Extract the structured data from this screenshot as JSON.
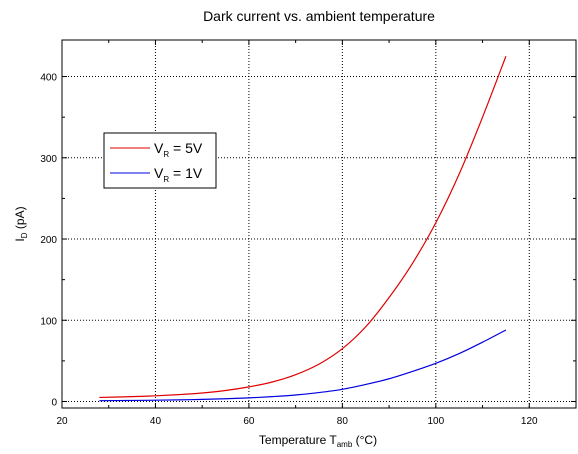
{
  "chart_data": {
    "type": "line",
    "title": "Dark current vs. ambient temperature",
    "xlabel": {
      "main": "Temperature T",
      "sub": "amb",
      "unit": " (°C)"
    },
    "ylabel": {
      "main": "I",
      "sub": "D",
      "unit": " (pA)"
    },
    "xlim": [
      20,
      130
    ],
    "ylim": [
      -8,
      445
    ],
    "xticks": [
      20,
      40,
      60,
      80,
      100,
      120
    ],
    "yticks": [
      0,
      100,
      200,
      300,
      400
    ],
    "grid": true,
    "legend_position": "upper-left",
    "series": [
      {
        "name": {
          "main": "V",
          "sub": "R",
          "rest": " = 5V"
        },
        "color": "#e00000",
        "x": [
          28,
          35,
          40,
          45,
          50,
          55,
          60,
          65,
          70,
          75,
          80,
          85,
          90,
          95,
          100,
          105,
          110,
          115
        ],
        "y": [
          5,
          6,
          7,
          8.5,
          10.5,
          13.5,
          18,
          24,
          33,
          46,
          65,
          92,
          128,
          170,
          220,
          280,
          350,
          425
        ]
      },
      {
        "name": {
          "main": "V",
          "sub": "R",
          "rest": " = 1V"
        },
        "color": "#0000e0",
        "x": [
          28,
          35,
          40,
          45,
          50,
          55,
          60,
          65,
          70,
          75,
          80,
          85,
          90,
          95,
          100,
          105,
          110,
          115
        ],
        "y": [
          1,
          1.3,
          1.6,
          2,
          2.6,
          3.4,
          4.5,
          6,
          8,
          11,
          15,
          21,
          28,
          37,
          47,
          59,
          73,
          88
        ]
      }
    ]
  }
}
